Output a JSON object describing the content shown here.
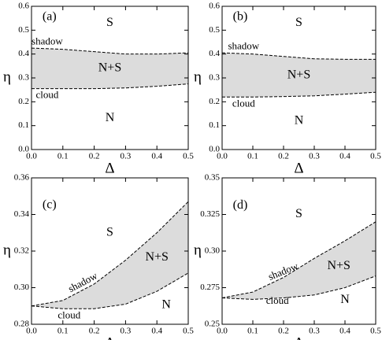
{
  "chart_data": [
    {
      "type": "line",
      "panel_label": "(a)",
      "xlabel": "Δ",
      "ylabel": "η",
      "x": [
        0,
        0.1,
        0.2,
        0.3,
        0.4,
        0.5
      ],
      "series": [
        {
          "name": "shadow",
          "color": "#000000",
          "values": [
            0.425,
            0.42,
            0.41,
            0.4,
            0.4,
            0.405
          ]
        },
        {
          "name": "cloud",
          "color": "#000000",
          "values": [
            0.255,
            0.255,
            0.255,
            0.258,
            0.265,
            0.275
          ]
        }
      ],
      "fill": "#dcdcdc",
      "dashed": true,
      "regions": [
        "S",
        "N+S",
        "N"
      ],
      "xlim": [
        0,
        0.5
      ],
      "xticks": [
        {
          "value": 0,
          "label": "0.0"
        },
        0.1,
        0.2,
        0.3,
        0.4,
        0.5
      ],
      "ylim": [
        0,
        0.6
      ],
      "yticks": [
        {
          "value": 0,
          "label": "0.0"
        },
        0.1,
        0.2,
        0.3,
        0.4,
        0.5,
        0.6
      ]
    },
    {
      "type": "line",
      "panel_label": "(b)",
      "xlabel": "Δ",
      "ylabel": "η",
      "x": [
        0,
        0.1,
        0.2,
        0.3,
        0.4,
        0.5
      ],
      "series": [
        {
          "name": "shadow",
          "color": "#000000",
          "values": [
            0.405,
            0.4,
            0.39,
            0.38,
            0.378,
            0.378
          ]
        },
        {
          "name": "cloud",
          "color": "#000000",
          "values": [
            0.22,
            0.22,
            0.222,
            0.225,
            0.232,
            0.24
          ]
        }
      ],
      "fill": "#dcdcdc",
      "dashed": true,
      "regions": [
        "S",
        "N+S",
        "N"
      ],
      "xlim": [
        0,
        0.5
      ],
      "xticks": [
        {
          "value": 0,
          "label": "0.0"
        },
        0.1,
        0.2,
        0.3,
        0.4,
        0.5
      ],
      "ylim": [
        0,
        0.6
      ],
      "yticks": [
        {
          "value": 0,
          "label": "0.0"
        },
        0.1,
        0.2,
        0.3,
        0.4,
        0.5,
        0.6
      ]
    },
    {
      "type": "line",
      "panel_label": "(c)",
      "xlabel": "Δ",
      "ylabel": "η",
      "x": [
        0,
        0.1,
        0.2,
        0.3,
        0.4,
        0.5
      ],
      "series": [
        {
          "name": "shadow",
          "color": "#000000",
          "values": [
            0.29,
            0.293,
            0.302,
            0.315,
            0.33,
            0.347
          ]
        },
        {
          "name": "cloud",
          "color": "#000000",
          "values": [
            0.29,
            0.2885,
            0.2885,
            0.291,
            0.298,
            0.308
          ]
        }
      ],
      "fill": "#dcdcdc",
      "dashed": true,
      "regions": [
        "S",
        "N+S",
        "N"
      ],
      "xlim": [
        0,
        0.5
      ],
      "xticks": [
        {
          "value": 0,
          "label": "0.0"
        },
        0.1,
        0.2,
        0.3,
        0.4,
        0.5
      ],
      "ylim": [
        0.28,
        0.36
      ],
      "yticks": [
        0.28,
        {
          "value": 0.3,
          "label": "0.30"
        },
        0.32,
        0.34,
        0.36
      ]
    },
    {
      "type": "line",
      "panel_label": "(d)",
      "xlabel": "Δ",
      "ylabel": "η",
      "x": [
        0,
        0.1,
        0.2,
        0.3,
        0.4,
        0.5
      ],
      "series": [
        {
          "name": "shadow",
          "color": "#000000",
          "values": [
            0.268,
            0.272,
            0.282,
            0.295,
            0.307,
            0.32
          ]
        },
        {
          "name": "cloud",
          "color": "#000000",
          "values": [
            0.268,
            0.267,
            0.268,
            0.27,
            0.275,
            0.283
          ]
        }
      ],
      "fill": "#dcdcdc",
      "dashed": true,
      "regions": [
        "S",
        "N+S",
        "N"
      ],
      "xlim": [
        0,
        0.5
      ],
      "xticks": [
        {
          "value": 0,
          "label": "0.0"
        },
        0.1,
        0.2,
        0.3,
        0.4,
        0.5
      ],
      "ylim": [
        0.25,
        0.35
      ],
      "yticks": [
        0.25,
        0.275,
        {
          "value": 0.3,
          "label": "0.30"
        },
        0.325,
        0.35
      ]
    }
  ]
}
